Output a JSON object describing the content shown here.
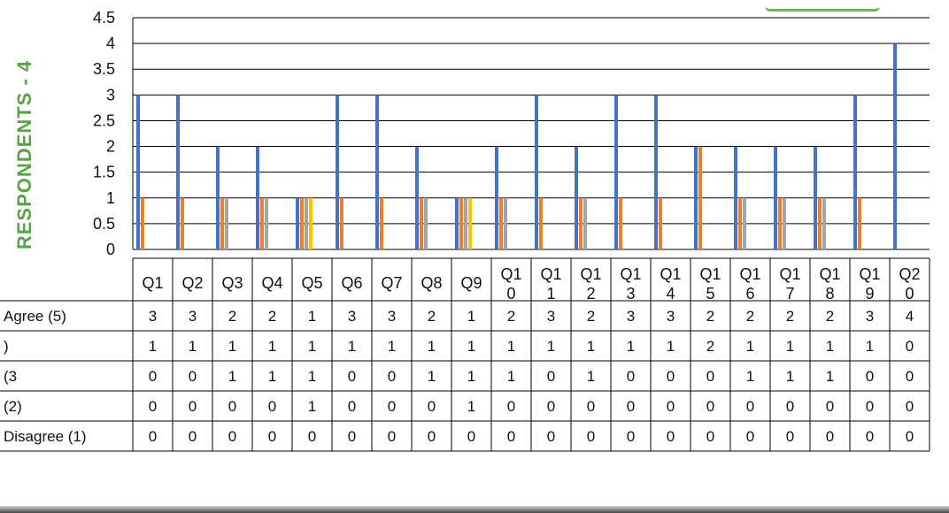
{
  "chart_data": {
    "type": "bar",
    "title": "",
    "ylabel": "RESPONDENTS - 4",
    "ylim": [
      0,
      4.5
    ],
    "yticks": [
      "4.5",
      "4",
      "3.5",
      "3",
      "2.5",
      "2",
      "1.5",
      "1",
      "0.5",
      "0"
    ],
    "categories": [
      [
        "Q1"
      ],
      [
        "Q2"
      ],
      [
        "Q3"
      ],
      [
        "Q4"
      ],
      [
        "Q5"
      ],
      [
        "Q6"
      ],
      [
        "Q7"
      ],
      [
        "Q8"
      ],
      [
        "Q9"
      ],
      [
        "Q1",
        "0"
      ],
      [
        "Q1",
        "1"
      ],
      [
        "Q1",
        "2"
      ],
      [
        "Q1",
        "3"
      ],
      [
        "Q1",
        "4"
      ],
      [
        "Q1",
        "5"
      ],
      [
        "Q1",
        "6"
      ],
      [
        "Q1",
        "7"
      ],
      [
        "Q1",
        "8"
      ],
      [
        "Q1",
        "9"
      ],
      [
        "Q2",
        "0"
      ]
    ],
    "series": [
      {
        "name": "Agree (5)",
        "color": "#4472c4",
        "values": [
          3,
          3,
          2,
          2,
          1,
          3,
          3,
          2,
          1,
          2,
          3,
          2,
          3,
          3,
          2,
          2,
          2,
          2,
          3,
          4
        ]
      },
      {
        "name": ")",
        "color": "#ed7d31",
        "values": [
          1,
          1,
          1,
          1,
          1,
          1,
          1,
          1,
          1,
          1,
          1,
          1,
          1,
          1,
          2,
          1,
          1,
          1,
          1,
          0
        ]
      },
      {
        "name": "(3",
        "color": "#a5a5a5",
        "values": [
          0,
          0,
          1,
          1,
          1,
          0,
          0,
          1,
          1,
          1,
          0,
          1,
          0,
          0,
          0,
          1,
          1,
          1,
          0,
          0
        ]
      },
      {
        "name": " (2)",
        "color": "#ffc000",
        "values": [
          0,
          0,
          0,
          0,
          1,
          0,
          0,
          0,
          1,
          0,
          0,
          0,
          0,
          0,
          0,
          0,
          0,
          0,
          0,
          0
        ]
      },
      {
        "name": "Disagree (1)",
        "color": "#5b9bd5",
        "values": [
          0,
          0,
          0,
          0,
          0,
          0,
          0,
          0,
          0,
          0,
          0,
          0,
          0,
          0,
          0,
          0,
          0,
          0,
          0,
          0
        ]
      }
    ],
    "grid": true,
    "legend": "table below chart"
  },
  "colors": {
    "ylabel": "#5aa24a",
    "grid": "#000000"
  }
}
